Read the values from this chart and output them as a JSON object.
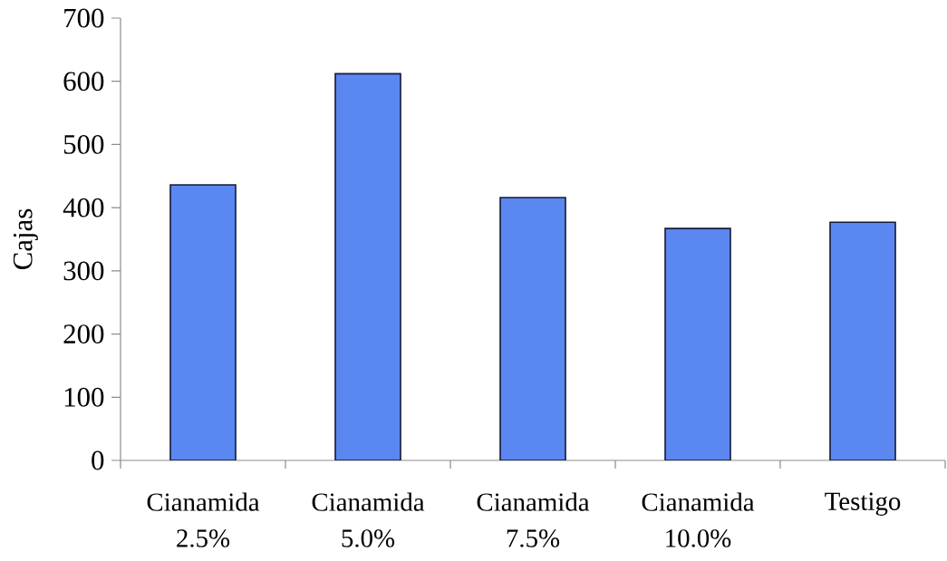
{
  "chart_data": {
    "type": "bar",
    "ylabel": "Cajas",
    "categories": [
      "Cianamida 2.5%",
      "Cianamida 5.0%",
      "Cianamida 7.5%",
      "Cianamida 10.0%",
      "Testigo"
    ],
    "values": [
      436,
      612,
      416,
      367,
      377
    ],
    "color": "#5b87f0",
    "ylim": [
      0,
      700
    ],
    "yticks": [
      0,
      100,
      200,
      300,
      400,
      500,
      600,
      700
    ]
  }
}
